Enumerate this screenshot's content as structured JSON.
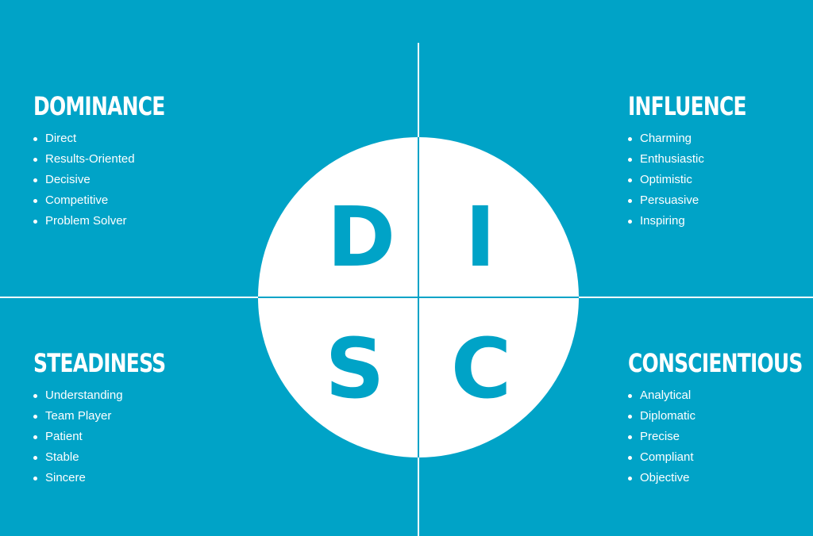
{
  "colors": {
    "background": "#00a3c7",
    "foreground": "#ffffff"
  },
  "center": {
    "letters": [
      "D",
      "I",
      "S",
      "C"
    ]
  },
  "quadrants": [
    {
      "title": "DOMINANCE",
      "traits": [
        "Direct",
        "Results-Oriented",
        "Decisive",
        "Competitive",
        "Problem Solver"
      ]
    },
    {
      "title": "INFLUENCE",
      "traits": [
        "Charming",
        "Enthusiastic",
        "Optimistic",
        "Persuasive",
        "Inspiring"
      ]
    },
    {
      "title": "STEADINESS",
      "traits": [
        "Understanding",
        "Team Player",
        "Patient",
        "Stable",
        "Sincere"
      ]
    },
    {
      "title": "CONSCIENTIOUS",
      "traits": [
        "Analytical",
        "Diplomatic",
        "Precise",
        "Compliant",
        "Objective"
      ]
    }
  ]
}
